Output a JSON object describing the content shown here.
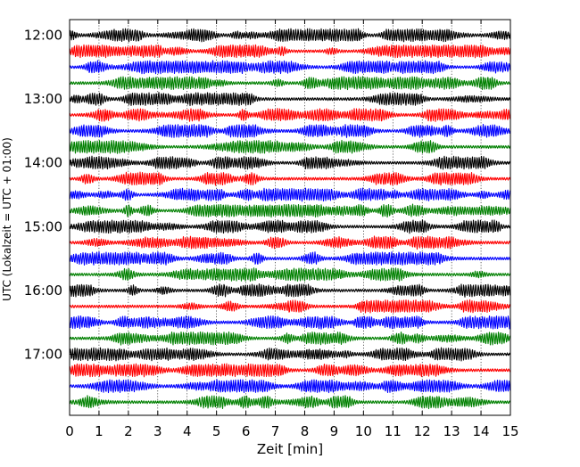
{
  "chart_data": {
    "type": "line",
    "xlabel": "Zeit  [min]",
    "ylabel": "UTC (Lokalzeit = UTC + 01:00)",
    "xlim": [
      0,
      15
    ],
    "x_ticks": [
      "0",
      "1",
      "2",
      "3",
      "4",
      "5",
      "6",
      "7",
      "8",
      "9",
      "10",
      "11",
      "12",
      "13",
      "14",
      "15"
    ],
    "y_ticks": [
      "12:00",
      "13:00",
      "14:00",
      "15:00",
      "16:00",
      "17:00"
    ],
    "grid": "vertical dotted at each minute",
    "trace_interval_min": 15,
    "first_trace_utc": "12:00",
    "trace_count": 24,
    "trace_colors": [
      "#000000",
      "#ff0000",
      "#0000ff",
      "#008000"
    ],
    "traces": [
      {
        "start": "12:00",
        "color_index": 0
      },
      {
        "start": "12:15",
        "color_index": 1
      },
      {
        "start": "12:30",
        "color_index": 2
      },
      {
        "start": "12:45",
        "color_index": 3
      },
      {
        "start": "13:00",
        "color_index": 0
      },
      {
        "start": "13:15",
        "color_index": 1
      },
      {
        "start": "13:30",
        "color_index": 2
      },
      {
        "start": "13:45",
        "color_index": 3
      },
      {
        "start": "14:00",
        "color_index": 0
      },
      {
        "start": "14:15",
        "color_index": 1
      },
      {
        "start": "14:30",
        "color_index": 2
      },
      {
        "start": "14:45",
        "color_index": 3
      },
      {
        "start": "15:00",
        "color_index": 0
      },
      {
        "start": "15:15",
        "color_index": 1
      },
      {
        "start": "15:30",
        "color_index": 2
      },
      {
        "start": "15:45",
        "color_index": 3
      },
      {
        "start": "16:00",
        "color_index": 0
      },
      {
        "start": "16:15",
        "color_index": 1
      },
      {
        "start": "16:30",
        "color_index": 2
      },
      {
        "start": "16:45",
        "color_index": 3
      },
      {
        "start": "17:00",
        "color_index": 0
      },
      {
        "start": "17:15",
        "color_index": 1
      },
      {
        "start": "17:30",
        "color_index": 2
      },
      {
        "start": "17:45",
        "color_index": 3
      }
    ]
  }
}
